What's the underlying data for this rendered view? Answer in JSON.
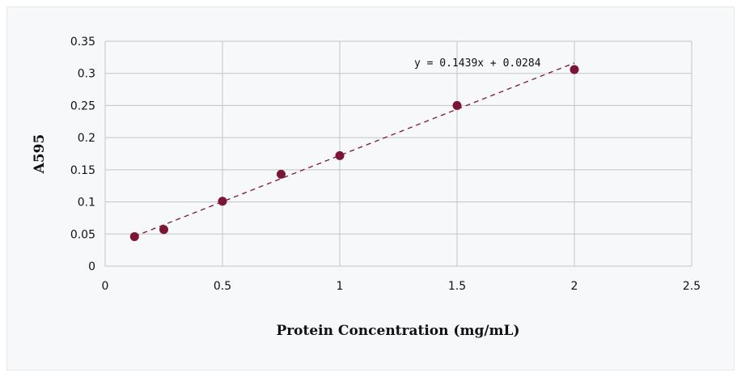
{
  "chart_data": {
    "type": "scatter",
    "xlabel": "Protein Concentration (mg/mL)",
    "ylabel": "A595",
    "xlim": [
      0,
      2.5
    ],
    "ylim": [
      0,
      0.35
    ],
    "x_ticks": [
      "0",
      "0.5",
      "1",
      "1.5",
      "2",
      "2.5"
    ],
    "y_ticks": [
      "0",
      "0.05",
      "0.1",
      "0.15",
      "0.2",
      "0.25",
      "0.3",
      "0.35"
    ],
    "grid": true,
    "points": [
      {
        "x": 0.125,
        "y": 0.046
      },
      {
        "x": 0.25,
        "y": 0.057
      },
      {
        "x": 0.5,
        "y": 0.101
      },
      {
        "x": 0.75,
        "y": 0.143
      },
      {
        "x": 1.0,
        "y": 0.172
      },
      {
        "x": 1.5,
        "y": 0.25
      },
      {
        "x": 2.0,
        "y": 0.306
      }
    ],
    "trendline": {
      "type": "linear",
      "slope": 0.1439,
      "intercept": 0.0284,
      "style": "dashed",
      "label": "y = 0.1439x + 0.0284"
    },
    "colors": {
      "marker": "#7b1535",
      "grid": "#c4c4c4"
    }
  }
}
